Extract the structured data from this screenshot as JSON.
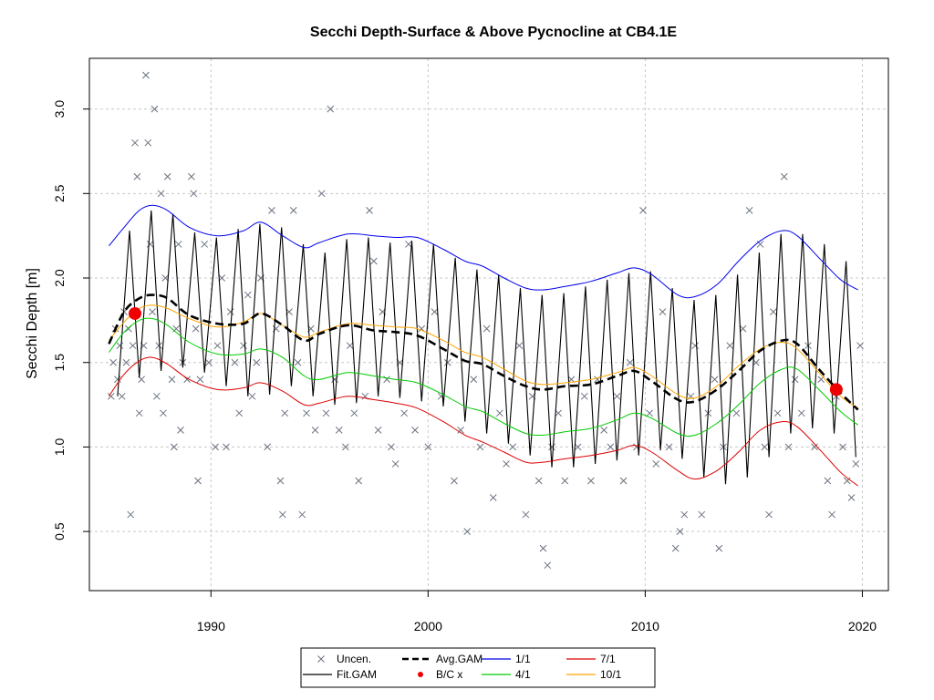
{
  "chart_data": {
    "type": "line",
    "title": "Secchi Depth-Surface & Above Pycnocline at CB4.1E",
    "xlabel": "",
    "ylabel": "Secchi Depth [m]",
    "xlim": [
      1984.4,
      2021.2
    ],
    "ylim": [
      0.15,
      3.3
    ],
    "x_ticks": [
      1990,
      2000,
      2010,
      2020
    ],
    "y_ticks": [
      0.5,
      1.0,
      1.5,
      2.0,
      2.5,
      3.0
    ],
    "x_tick_labels": [
      "1990",
      "2000",
      "2010",
      "2020"
    ],
    "y_tick_labels": [
      "0.5",
      "1.0",
      "1.5",
      "2.0",
      "2.5",
      "3.0"
    ],
    "grid": true,
    "legend_position": "bottom",
    "legend": [
      {
        "label": "Uncen.",
        "kind": "marker-x",
        "color": "#6b7280"
      },
      {
        "label": "Avg.GAM",
        "kind": "line-dashed",
        "color": "#000000"
      },
      {
        "label": "1/1",
        "kind": "line",
        "color": "#0000ee"
      },
      {
        "label": "7/1",
        "kind": "line",
        "color": "#dd0000"
      },
      {
        "label": "Fit.GAM",
        "kind": "line",
        "color": "#000000"
      },
      {
        "label": "B/C x",
        "kind": "marker-dot",
        "color": "#ee0000"
      },
      {
        "label": "4/1",
        "kind": "line",
        "color": "#00cc00"
      },
      {
        "label": "10/1",
        "kind": "line",
        "color": "#ffa500"
      }
    ],
    "series": [
      {
        "name": "1/1",
        "color": "#0000ee",
        "x": [
          1985.3,
          1986.0,
          1986.7,
          1987.3,
          1988.0,
          1989.0,
          1990.3,
          1991.5,
          1992.3,
          1993.3,
          1994.3,
          1995.0,
          1996.3,
          1997.5,
          1998.5,
          1999.5,
          2000.7,
          2001.7,
          2002.5,
          2003.5,
          2004.5,
          2005.3,
          2006.3,
          2007.5,
          2008.7,
          2009.5,
          2010.3,
          2011.5,
          2012.3,
          2013.3,
          2014.3,
          2015.3,
          2016.3,
          2017.0,
          2018.0,
          2019.0,
          2019.8
        ],
        "y": [
          2.19,
          2.3,
          2.4,
          2.43,
          2.4,
          2.3,
          2.25,
          2.28,
          2.33,
          2.25,
          2.18,
          2.21,
          2.26,
          2.25,
          2.24,
          2.24,
          2.17,
          2.1,
          2.07,
          2.0,
          1.94,
          1.93,
          1.95,
          1.98,
          2.03,
          2.06,
          2.02,
          1.9,
          1.89,
          1.96,
          2.1,
          2.22,
          2.28,
          2.25,
          2.12,
          1.99,
          1.93
        ]
      },
      {
        "name": "10/1",
        "color": "#ffa500",
        "x": [
          1985.3,
          1986.0,
          1986.7,
          1987.3,
          1988.0,
          1989.0,
          1990.3,
          1991.5,
          1992.3,
          1993.3,
          1994.3,
          1995.0,
          1996.3,
          1997.5,
          1998.5,
          1999.5,
          2000.7,
          2001.7,
          2002.5,
          2003.5,
          2004.5,
          2005.3,
          2006.3,
          2007.5,
          2008.7,
          2009.5,
          2010.3,
          2011.5,
          2012.3,
          2013.3,
          2014.3,
          2015.3,
          2016.3,
          2017.0,
          2018.0,
          2019.0,
          2019.8
        ],
        "y": [
          1.63,
          1.74,
          1.82,
          1.84,
          1.82,
          1.76,
          1.71,
          1.74,
          1.79,
          1.72,
          1.65,
          1.68,
          1.73,
          1.72,
          1.71,
          1.7,
          1.63,
          1.56,
          1.53,
          1.46,
          1.39,
          1.37,
          1.38,
          1.4,
          1.44,
          1.47,
          1.42,
          1.31,
          1.29,
          1.36,
          1.48,
          1.58,
          1.62,
          1.58,
          1.44,
          1.3,
          1.23
        ]
      },
      {
        "name": "4/1",
        "color": "#00cc00",
        "x": [
          1985.3,
          1986.0,
          1986.7,
          1987.3,
          1988.0,
          1989.0,
          1990.3,
          1991.5,
          1992.3,
          1993.3,
          1994.3,
          1995.0,
          1996.3,
          1997.5,
          1998.5,
          1999.5,
          2000.7,
          2001.7,
          2002.5,
          2003.5,
          2004.5,
          2005.3,
          2006.3,
          2007.5,
          2008.7,
          2009.5,
          2010.3,
          2011.5,
          2012.3,
          2013.3,
          2014.3,
          2015.3,
          2016.3,
          2017.0,
          2018.0,
          2019.0,
          2019.8
        ],
        "y": [
          1.56,
          1.68,
          1.75,
          1.76,
          1.72,
          1.62,
          1.55,
          1.55,
          1.58,
          1.53,
          1.42,
          1.4,
          1.44,
          1.42,
          1.4,
          1.38,
          1.31,
          1.24,
          1.21,
          1.14,
          1.08,
          1.07,
          1.09,
          1.11,
          1.16,
          1.2,
          1.17,
          1.08,
          1.07,
          1.14,
          1.25,
          1.38,
          1.46,
          1.46,
          1.34,
          1.21,
          1.13
        ]
      },
      {
        "name": "7/1",
        "color": "#dd0000",
        "x": [
          1985.3,
          1986.0,
          1986.7,
          1987.3,
          1988.0,
          1989.0,
          1990.3,
          1991.5,
          1992.3,
          1993.3,
          1994.3,
          1995.0,
          1996.3,
          1997.5,
          1998.5,
          1999.5,
          2000.7,
          2001.7,
          2002.5,
          2003.5,
          2004.5,
          2005.3,
          2006.3,
          2007.5,
          2008.7,
          2009.5,
          2010.3,
          2011.5,
          2012.3,
          2013.3,
          2014.3,
          2015.3,
          2016.3,
          2017.0,
          2018.0,
          2019.0,
          2019.8
        ],
        "y": [
          1.3,
          1.43,
          1.51,
          1.53,
          1.49,
          1.4,
          1.34,
          1.35,
          1.38,
          1.33,
          1.25,
          1.26,
          1.3,
          1.28,
          1.26,
          1.23,
          1.15,
          1.07,
          1.03,
          0.97,
          0.91,
          0.91,
          0.93,
          0.95,
          0.98,
          1.01,
          0.97,
          0.86,
          0.81,
          0.86,
          0.97,
          1.1,
          1.15,
          1.12,
          0.99,
          0.85,
          0.77
        ]
      },
      {
        "name": "Avg.GAM",
        "color": "#000000",
        "dashed": true,
        "x": [
          1985.3,
          1986.0,
          1986.7,
          1987.3,
          1988.0,
          1989.0,
          1990.3,
          1991.5,
          1992.3,
          1993.3,
          1994.3,
          1995.0,
          1996.3,
          1997.5,
          1998.5,
          1999.5,
          2000.7,
          2001.7,
          2002.5,
          2003.5,
          2004.5,
          2005.3,
          2006.3,
          2007.5,
          2008.7,
          2009.5,
          2010.3,
          2011.5,
          2012.3,
          2013.3,
          2014.3,
          2015.3,
          2016.3,
          2017.0,
          2018.0,
          2019.0,
          2019.8
        ],
        "y": [
          1.61,
          1.8,
          1.88,
          1.9,
          1.88,
          1.78,
          1.73,
          1.73,
          1.79,
          1.72,
          1.63,
          1.67,
          1.72,
          1.69,
          1.68,
          1.66,
          1.58,
          1.51,
          1.49,
          1.42,
          1.36,
          1.34,
          1.36,
          1.37,
          1.42,
          1.45,
          1.39,
          1.28,
          1.27,
          1.34,
          1.45,
          1.57,
          1.63,
          1.61,
          1.46,
          1.32,
          1.22
        ]
      }
    ],
    "fit_gam": {
      "name": "Fit.GAM",
      "color": "#000000",
      "first_year": 1985.4,
      "last_year": 1999.9,
      "peak_offset": 0.25,
      "trough_offset": 0.7,
      "peaks": [
        2.05,
        2.28,
        2.4,
        2.38,
        2.27,
        2.24,
        2.29,
        2.32,
        2.3,
        2.2,
        2.15,
        2.23,
        2.24,
        2.21,
        2.22,
        2.2,
        2.12,
        2.05,
        2.02,
        1.94,
        1.9,
        1.91,
        1.95,
        1.99,
        2.03,
        2.04,
        1.94,
        1.87,
        1.9,
        2.02,
        2.15,
        2.26,
        2.26,
        2.2,
        2.1,
        1.99
      ],
      "troughs": [
        1.3,
        1.41,
        1.45,
        1.47,
        1.44,
        1.36,
        1.3,
        1.31,
        1.36,
        1.3,
        1.25,
        1.26,
        1.3,
        1.29,
        1.27,
        1.24,
        1.15,
        1.08,
        1.02,
        0.95,
        0.88,
        0.88,
        0.9,
        0.92,
        0.95,
        0.98,
        0.93,
        0.82,
        0.78,
        0.82,
        0.94,
        1.08,
        1.11,
        1.08,
        0.94,
        0.8
      ]
    },
    "bc_points": [
      {
        "x": 1986.5,
        "y": 1.79
      },
      {
        "x": 2018.8,
        "y": 1.34
      }
    ],
    "uncensored_points": [
      [
        1985.4,
        1.3
      ],
      [
        1985.5,
        1.5
      ],
      [
        1985.6,
        1.7
      ],
      [
        1985.7,
        1.4
      ],
      [
        1985.8,
        1.6
      ],
      [
        1985.9,
        1.3
      ],
      [
        1986.0,
        1.8
      ],
      [
        1986.1,
        1.5
      ],
      [
        1986.2,
        1.7
      ],
      [
        1986.3,
        0.6
      ],
      [
        1986.4,
        1.6
      ],
      [
        1986.5,
        2.8
      ],
      [
        1986.6,
        2.6
      ],
      [
        1986.7,
        1.2
      ],
      [
        1986.8,
        1.4
      ],
      [
        1986.9,
        1.6
      ],
      [
        1987.0,
        3.2
      ],
      [
        1987.1,
        2.8
      ],
      [
        1987.2,
        2.2
      ],
      [
        1987.3,
        1.8
      ],
      [
        1987.4,
        3.0
      ],
      [
        1987.5,
        1.3
      ],
      [
        1987.6,
        1.6
      ],
      [
        1987.7,
        2.5
      ],
      [
        1987.8,
        1.2
      ],
      [
        1987.9,
        2.0
      ],
      [
        1988.0,
        2.6
      ],
      [
        1988.2,
        1.4
      ],
      [
        1988.3,
        1.0
      ],
      [
        1988.4,
        1.7
      ],
      [
        1988.5,
        2.2
      ],
      [
        1988.6,
        1.1
      ],
      [
        1988.7,
        1.5
      ],
      [
        1988.9,
        1.4
      ],
      [
        1989.1,
        2.6
      ],
      [
        1989.2,
        2.5
      ],
      [
        1989.3,
        1.7
      ],
      [
        1989.4,
        0.8
      ],
      [
        1989.5,
        1.4
      ],
      [
        1989.7,
        2.2
      ],
      [
        1989.9,
        1.5
      ],
      [
        1990.2,
        1.0
      ],
      [
        1990.3,
        1.6
      ],
      [
        1990.5,
        2.0
      ],
      [
        1990.7,
        1.0
      ],
      [
        1990.9,
        1.8
      ],
      [
        1991.1,
        1.5
      ],
      [
        1991.3,
        1.2
      ],
      [
        1991.5,
        1.6
      ],
      [
        1991.7,
        1.9
      ],
      [
        1991.9,
        1.3
      ],
      [
        1992.1,
        1.5
      ],
      [
        1992.3,
        2.0
      ],
      [
        1992.6,
        1.0
      ],
      [
        1992.8,
        2.4
      ],
      [
        1993.0,
        1.7
      ],
      [
        1993.2,
        0.8
      ],
      [
        1993.3,
        0.6
      ],
      [
        1993.4,
        1.2
      ],
      [
        1993.6,
        1.8
      ],
      [
        1993.8,
        2.4
      ],
      [
        1994.0,
        1.5
      ],
      [
        1994.2,
        0.6
      ],
      [
        1994.4,
        1.2
      ],
      [
        1994.6,
        1.7
      ],
      [
        1994.8,
        1.1
      ],
      [
        1995.1,
        2.5
      ],
      [
        1995.3,
        1.2
      ],
      [
        1995.5,
        3.0
      ],
      [
        1995.7,
        1.4
      ],
      [
        1995.9,
        1.1
      ],
      [
        1996.2,
        1.0
      ],
      [
        1996.4,
        1.6
      ],
      [
        1996.6,
        1.2
      ],
      [
        1996.8,
        0.8
      ],
      [
        1997.1,
        1.3
      ],
      [
        1997.3,
        2.4
      ],
      [
        1997.5,
        2.1
      ],
      [
        1997.7,
        1.1
      ],
      [
        1997.9,
        1.8
      ],
      [
        1998.1,
        1.4
      ],
      [
        1998.3,
        1.0
      ],
      [
        1998.5,
        0.9
      ],
      [
        1998.7,
        1.5
      ],
      [
        1998.9,
        1.2
      ],
      [
        1999.1,
        2.2
      ],
      [
        1999.4,
        1.1
      ],
      [
        1999.7,
        1.7
      ],
      [
        2000.0,
        1.0
      ],
      [
        2000.3,
        1.8
      ],
      [
        2000.6,
        1.3
      ],
      [
        2000.9,
        1.5
      ],
      [
        2001.2,
        0.8
      ],
      [
        2001.5,
        1.1
      ],
      [
        2001.8,
        0.5
      ],
      [
        2002.1,
        1.4
      ],
      [
        2002.4,
        1.0
      ],
      [
        2002.7,
        1.7
      ],
      [
        2003.0,
        0.7
      ],
      [
        2003.3,
        1.2
      ],
      [
        2003.6,
        0.9
      ],
      [
        2003.9,
        1.0
      ],
      [
        2004.2,
        1.6
      ],
      [
        2004.5,
        0.6
      ],
      [
        2004.8,
        1.3
      ],
      [
        2005.1,
        0.8
      ],
      [
        2005.3,
        0.4
      ],
      [
        2005.5,
        0.3
      ],
      [
        2005.7,
        1.0
      ],
      [
        2006.0,
        1.2
      ],
      [
        2006.3,
        0.8
      ],
      [
        2006.6,
        1.4
      ],
      [
        2006.9,
        1.0
      ],
      [
        2007.2,
        1.3
      ],
      [
        2007.5,
        0.8
      ],
      [
        2007.8,
        1.4
      ],
      [
        2008.1,
        1.1
      ],
      [
        2008.4,
        1.0
      ],
      [
        2008.7,
        1.3
      ],
      [
        2009.0,
        0.8
      ],
      [
        2009.3,
        1.5
      ],
      [
        2009.6,
        1.0
      ],
      [
        2009.9,
        2.4
      ],
      [
        2010.2,
        1.2
      ],
      [
        2010.5,
        0.9
      ],
      [
        2010.8,
        1.8
      ],
      [
        2011.1,
        1.0
      ],
      [
        2011.4,
        0.4
      ],
      [
        2011.6,
        0.5
      ],
      [
        2011.8,
        0.6
      ],
      [
        2012.1,
        1.3
      ],
      [
        2012.3,
        1.6
      ],
      [
        2012.6,
        0.6
      ],
      [
        2012.9,
        1.2
      ],
      [
        2013.2,
        1.4
      ],
      [
        2013.4,
        0.4
      ],
      [
        2013.6,
        1.0
      ],
      [
        2013.9,
        1.6
      ],
      [
        2014.2,
        1.2
      ],
      [
        2014.5,
        1.7
      ],
      [
        2014.8,
        2.4
      ],
      [
        2015.1,
        1.5
      ],
      [
        2015.3,
        2.2
      ],
      [
        2015.5,
        1.0
      ],
      [
        2015.7,
        0.6
      ],
      [
        2015.9,
        1.8
      ],
      [
        2016.1,
        1.2
      ],
      [
        2016.4,
        2.6
      ],
      [
        2016.6,
        1.0
      ],
      [
        2016.9,
        1.4
      ],
      [
        2017.2,
        1.2
      ],
      [
        2017.5,
        1.6
      ],
      [
        2017.8,
        1.0
      ],
      [
        2018.1,
        1.4
      ],
      [
        2018.4,
        0.8
      ],
      [
        2018.6,
        0.6
      ],
      [
        2018.8,
        1.3
      ],
      [
        2019.1,
        1.0
      ],
      [
        2019.3,
        0.8
      ],
      [
        2019.5,
        0.7
      ],
      [
        2019.7,
        0.9
      ],
      [
        2019.9,
        1.6
      ]
    ]
  }
}
